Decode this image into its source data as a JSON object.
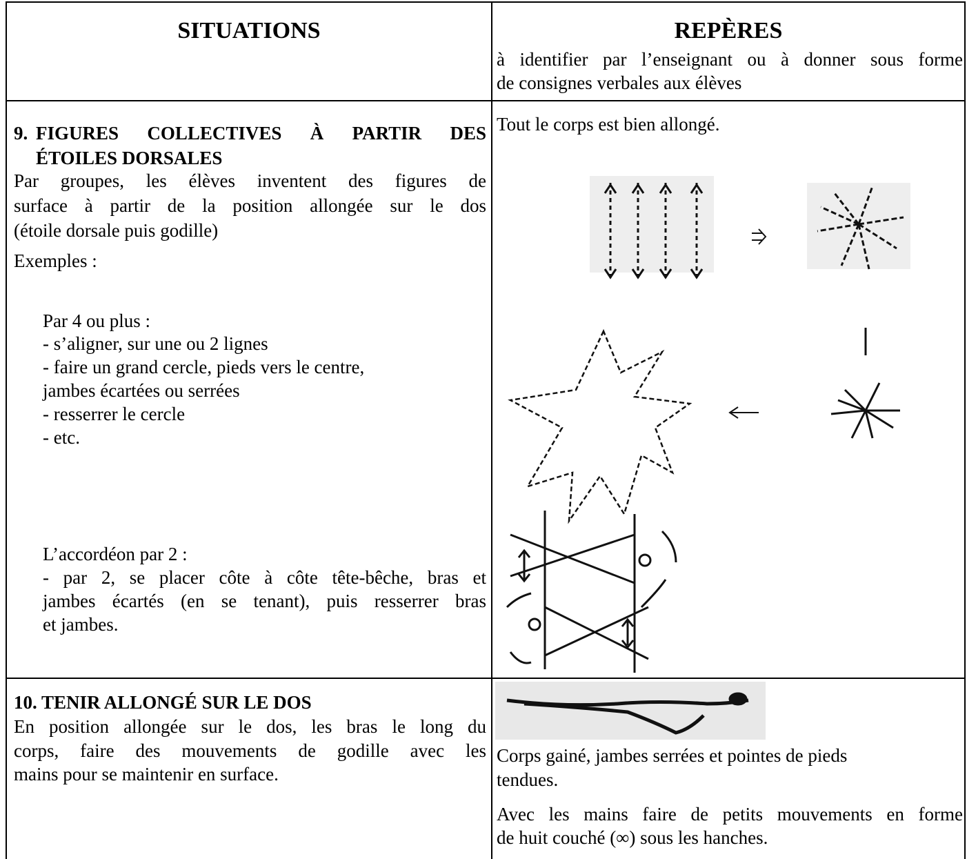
{
  "header": {
    "situations": "SITUATIONS",
    "reperes": "REPÈRES",
    "reperes_note": [
      "à identifier par l’enseignant ou à donner sous forme",
      "de consignes verbales aux élèves"
    ]
  },
  "rows": [
    {
      "number": "9.",
      "title": [
        "FIGURES COLLECTIVES À PARTIR DES",
        "ÉTOILES DORSALES"
      ],
      "intro": [
        "Par groupes, les élèves inventent des figures de",
        "surface à partir de la position allongée sur le dos",
        "(étoile dorsale puis godille)"
      ],
      "examples": "Exemples :",
      "group1": {
        "heading": "Par 4 ou plus :",
        "lines": [
          "- s’aligner, sur une ou 2 lignes",
          "- faire un grand cercle, pieds vers le centre,",
          "jambes écartées ou serrées",
          "- resserrer le cercle",
          "- etc."
        ]
      },
      "group2": {
        "heading": "L’accordéon par 2 :",
        "lines": [
          "- par 2, se placer côte à côte tête-bêche, bras et",
          "jambes écartés (en se tenant), puis resserrer bras",
          "et jambes."
        ]
      },
      "reperes": "Tout le corps est bien allongé."
    },
    {
      "number_title": "10. TENIR ALLONGÉ SUR LE DOS",
      "text": [
        "En position allongée sur le dos, les bras le long du",
        "corps, faire des mouvements de godille avec les",
        "mains pour se maintenir en surface."
      ],
      "reperes": [
        [
          "Corps gainé, jambes serrées et pointes de pieds",
          "tendues."
        ],
        [
          "Avec les mains faire de petits mouvements en forme",
          "de huit couché (∞) sous les hanches."
        ]
      ]
    }
  ]
}
